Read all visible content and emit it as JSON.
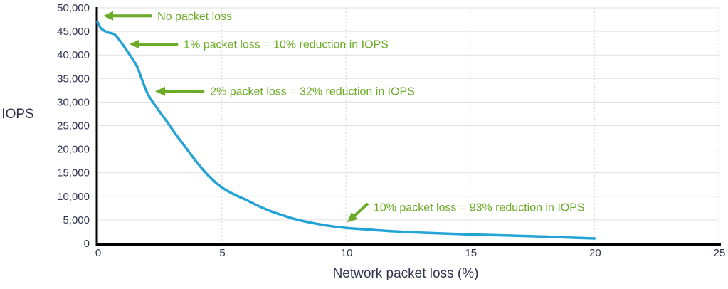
{
  "chart_data": {
    "type": "line",
    "title": "",
    "xlabel": "Network packet loss (%)",
    "ylabel": "IOPS",
    "xlim": [
      0,
      25
    ],
    "ylim": [
      0,
      50000
    ],
    "x_ticks": {
      "values": [
        0,
        5,
        10,
        15,
        20,
        25
      ],
      "labels": [
        "0",
        "5",
        "10",
        "15",
        "20",
        "25"
      ]
    },
    "y_ticks": {
      "values": [
        0,
        5000,
        10000,
        15000,
        20000,
        25000,
        30000,
        35000,
        40000,
        45000,
        50000
      ],
      "labels": [
        "0",
        "5,000",
        "10,000",
        "15,000",
        "20,000",
        "25,000",
        "30,000",
        "35,000",
        "40,000",
        "45,000",
        "50,000"
      ]
    },
    "grid": {
      "horizontal": "solid",
      "vertical": "dashed"
    },
    "legend": "none",
    "series": [
      {
        "name": "IOPS",
        "color": "#24a3d6",
        "points": [
          [
            0,
            47000
          ],
          [
            0.15,
            45600
          ],
          [
            0.4,
            44800
          ],
          [
            0.7,
            44300
          ],
          [
            1,
            42300
          ],
          [
            1.3,
            40000
          ],
          [
            1.6,
            37400
          ],
          [
            2,
            32000
          ],
          [
            2.4,
            28700
          ],
          [
            2.8,
            25800
          ],
          [
            3.2,
            22800
          ],
          [
            3.6,
            20000
          ],
          [
            4,
            17200
          ],
          [
            4.5,
            14200
          ],
          [
            5,
            11900
          ],
          [
            5.5,
            10400
          ],
          [
            6,
            9200
          ],
          [
            6.5,
            7900
          ],
          [
            7,
            6800
          ],
          [
            7.5,
            5900
          ],
          [
            8,
            5100
          ],
          [
            8.5,
            4500
          ],
          [
            9,
            4000
          ],
          [
            9.5,
            3600
          ],
          [
            10,
            3300
          ],
          [
            11,
            2900
          ],
          [
            12,
            2550
          ],
          [
            13,
            2300
          ],
          [
            14,
            2100
          ],
          [
            15,
            1900
          ],
          [
            16,
            1750
          ],
          [
            17,
            1600
          ],
          [
            18,
            1450
          ],
          [
            19,
            1250
          ],
          [
            20,
            1050
          ]
        ]
      }
    ],
    "annotations": [
      {
        "text": "No packet loss",
        "arrow": "horizontal",
        "tip": {
          "x": 0.23,
          "y": 48300
        },
        "label": {
          "x": 2.41,
          "y": 48300
        }
      },
      {
        "text": "1% packet loss = 10% reduction in IOPS",
        "arrow": "horizontal",
        "tip": {
          "x": 1.29,
          "y": 42300
        },
        "label": {
          "x": 3.47,
          "y": 42300
        }
      },
      {
        "text": "2% packet loss = 32% reduction in IOPS",
        "arrow": "horizontal",
        "tip": {
          "x": 2.32,
          "y": 32300
        },
        "label": {
          "x": 4.53,
          "y": 32300
        }
      },
      {
        "text": "10% packet loss = 93% reduction in IOPS",
        "arrow": "diagonal",
        "tip": {
          "x": 10.05,
          "y": 4500
        },
        "label": {
          "x": 11.11,
          "y": 7700
        }
      }
    ]
  },
  "colors": {
    "line": "#24a3d6",
    "annotation": "#6cab28",
    "axis_text": "#30344d",
    "axis_line": "#000000",
    "grid_h": "#e1e1e1",
    "grid_v": "#d4d4d4",
    "background": "#ffffff"
  }
}
